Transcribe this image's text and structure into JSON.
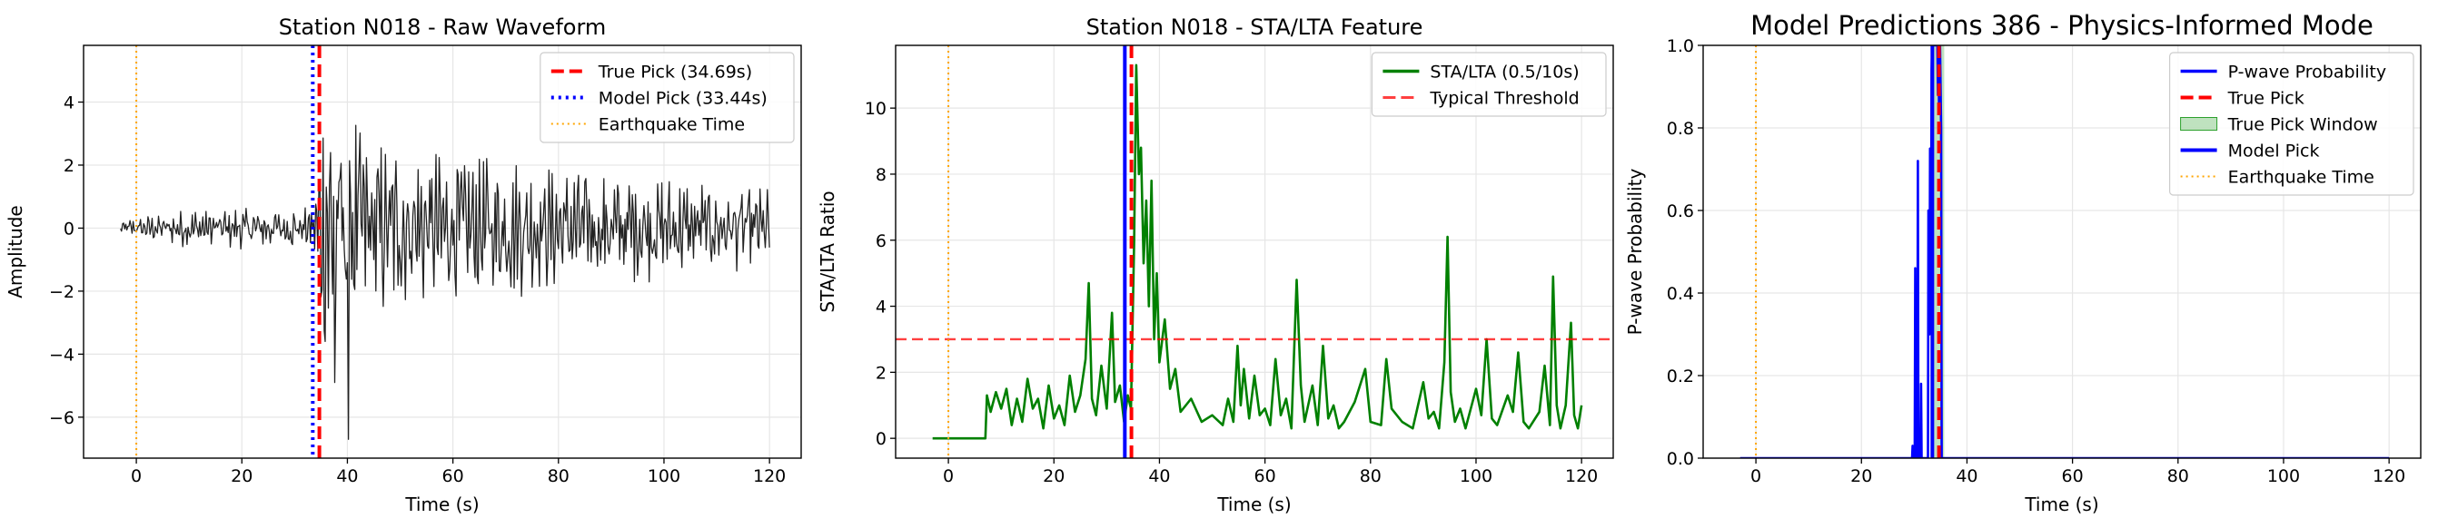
{
  "chart_data": [
    {
      "type": "line",
      "title": "Station N018 - Raw Waveform",
      "xlabel": "Time (s)",
      "ylabel": "Amplitude",
      "xlim": [
        -10,
        126
      ],
      "ylim": [
        -7.3,
        5.8
      ],
      "xticks": [
        0,
        20,
        40,
        60,
        80,
        100,
        120
      ],
      "xtick_labels": [
        "0",
        "20",
        "40",
        "60",
        "80",
        "100",
        "120"
      ],
      "yticks": [
        -6,
        -4,
        -2,
        0,
        2,
        4
      ],
      "ytick_labels": [
        "−6",
        "−4",
        "−2",
        "0",
        "2",
        "4"
      ],
      "grid": true,
      "legend_position": "top-right",
      "series": [
        {
          "name": "waveform",
          "color": "#222222",
          "start": -3,
          "end": 120,
          "envelope": [
            [
              -3,
              0.25
            ],
            [
              8,
              0.6
            ],
            [
              20,
              0.7
            ],
            [
              33,
              0.7
            ],
            [
              34,
              2.0
            ],
            [
              36,
              5.0
            ],
            [
              40,
              4.0
            ],
            [
              48,
              2.8
            ],
            [
              60,
              2.5
            ],
            [
              70,
              2.3
            ],
            [
              80,
              2.0
            ],
            [
              95,
              1.8
            ],
            [
              110,
              1.5
            ],
            [
              120,
              1.3
            ]
          ],
          "spikes": [
            {
              "x": 39.3,
              "y": 5.2
            },
            {
              "x": 40.2,
              "y": -6.7
            },
            {
              "x": 37.6,
              "y": -4.9
            },
            {
              "x": 38.5,
              "y": 3.9
            }
          ]
        }
      ],
      "vlines": [
        {
          "name": "True Pick (34.69s)",
          "x": 34.69,
          "color": "#ff0000",
          "style": "dashed"
        },
        {
          "name": "Model Pick (33.44s)",
          "x": 33.44,
          "color": "#0000ff",
          "style": "dotted"
        },
        {
          "name": "Earthquake Time",
          "x": 0,
          "color": "#ffa500",
          "style": "dotted-thin"
        }
      ],
      "legend": [
        "True Pick (34.69s)",
        "Model Pick (33.44s)",
        "Earthquake Time"
      ]
    },
    {
      "type": "line",
      "title": "Station N018 - STA/LTA Feature",
      "xlabel": "Time (s)",
      "ylabel": "STA/LTA Ratio",
      "xlim": [
        -10,
        126
      ],
      "ylim": [
        -0.6,
        11.9
      ],
      "xticks": [
        0,
        20,
        40,
        60,
        80,
        100,
        120
      ],
      "xtick_labels": [
        "0",
        "20",
        "40",
        "60",
        "80",
        "100",
        "120"
      ],
      "yticks": [
        0,
        2,
        4,
        6,
        8,
        10
      ],
      "ytick_labels": [
        "0",
        "2",
        "4",
        "6",
        "8",
        "10"
      ],
      "grid": true,
      "legend_position": "top-right",
      "series": [
        {
          "name": "STA/LTA (0.5/10s)",
          "color": "#008000",
          "points": [
            [
              -3,
              0
            ],
            [
              7,
              0
            ],
            [
              7.3,
              1.3
            ],
            [
              8,
              0.8
            ],
            [
              9,
              1.4
            ],
            [
              10,
              0.9
            ],
            [
              11,
              1.5
            ],
            [
              12,
              0.4
            ],
            [
              13,
              1.2
            ],
            [
              14,
              0.5
            ],
            [
              15,
              1.8
            ],
            [
              16,
              0.9
            ],
            [
              17,
              1.2
            ],
            [
              18,
              0.3
            ],
            [
              19,
              1.6
            ],
            [
              20,
              0.6
            ],
            [
              21,
              1.0
            ],
            [
              22,
              0.4
            ],
            [
              23,
              1.9
            ],
            [
              24,
              0.8
            ],
            [
              25,
              1.3
            ],
            [
              26,
              2.4
            ],
            [
              26.6,
              4.7
            ],
            [
              27.2,
              1.2
            ],
            [
              28,
              0.7
            ],
            [
              29,
              2.2
            ],
            [
              30,
              0.9
            ],
            [
              31,
              3.8
            ],
            [
              31.6,
              1.1
            ],
            [
              32.5,
              1.6
            ],
            [
              33.3,
              0.5
            ],
            [
              34,
              1.3
            ],
            [
              34.6,
              0.9
            ],
            [
              35.2,
              6.0
            ],
            [
              35.6,
              11.3
            ],
            [
              36.1,
              8.0
            ],
            [
              36.5,
              8.8
            ],
            [
              37,
              5.3
            ],
            [
              37.5,
              7.2
            ],
            [
              38,
              4.0
            ],
            [
              38.5,
              7.8
            ],
            [
              39,
              3.0
            ],
            [
              39.5,
              5.0
            ],
            [
              40,
              2.3
            ],
            [
              41,
              3.6
            ],
            [
              42,
              1.5
            ],
            [
              43,
              2.1
            ],
            [
              44,
              0.8
            ],
            [
              46,
              1.2
            ],
            [
              48,
              0.5
            ],
            [
              50,
              0.7
            ],
            [
              52,
              0.4
            ],
            [
              53,
              1.2
            ],
            [
              54,
              0.5
            ],
            [
              54.8,
              2.8
            ],
            [
              55.4,
              1.0
            ],
            [
              56,
              2.1
            ],
            [
              57,
              0.6
            ],
            [
              58,
              1.9
            ],
            [
              59,
              0.7
            ],
            [
              60,
              0.9
            ],
            [
              61,
              0.4
            ],
            [
              62,
              2.4
            ],
            [
              63,
              0.7
            ],
            [
              64,
              1.2
            ],
            [
              65,
              0.3
            ],
            [
              66,
              4.8
            ],
            [
              66.8,
              1.6
            ],
            [
              67.5,
              0.5
            ],
            [
              69,
              1.6
            ],
            [
              70,
              0.4
            ],
            [
              71,
              2.8
            ],
            [
              72,
              0.6
            ],
            [
              73,
              1.0
            ],
            [
              74,
              0.3
            ],
            [
              75,
              0.5
            ],
            [
              77,
              1.1
            ],
            [
              79,
              2.1
            ],
            [
              80,
              0.5
            ],
            [
              82,
              0.4
            ],
            [
              83,
              2.4
            ],
            [
              84,
              0.9
            ],
            [
              86,
              0.5
            ],
            [
              88,
              0.3
            ],
            [
              90,
              1.7
            ],
            [
              91,
              0.6
            ],
            [
              92,
              0.8
            ],
            [
              93,
              0.3
            ],
            [
              94,
              2.3
            ],
            [
              94.6,
              6.1
            ],
            [
              95.2,
              1.4
            ],
            [
              96,
              0.5
            ],
            [
              97,
              0.9
            ],
            [
              98,
              0.3
            ],
            [
              100,
              1.5
            ],
            [
              101,
              0.7
            ],
            [
              102,
              3.0
            ],
            [
              103,
              0.6
            ],
            [
              104,
              0.4
            ],
            [
              106,
              1.3
            ],
            [
              107,
              0.8
            ],
            [
              108,
              2.6
            ],
            [
              109,
              0.5
            ],
            [
              110,
              0.3
            ],
            [
              112,
              0.8
            ],
            [
              113,
              2.2
            ],
            [
              114,
              0.4
            ],
            [
              114.6,
              4.9
            ],
            [
              115.3,
              1.0
            ],
            [
              116,
              0.3
            ],
            [
              117,
              1.0
            ],
            [
              118,
              3.5
            ],
            [
              118.6,
              0.7
            ],
            [
              119.3,
              0.3
            ],
            [
              120,
              1.0
            ]
          ]
        }
      ],
      "hlines": [
        {
          "name": "Typical Threshold",
          "y": 3.0,
          "color": "#ff0000",
          "style": "dashed"
        }
      ],
      "vlines": [
        {
          "name": "true-pick",
          "x": 34.69,
          "color": "#ff0000",
          "style": "dashed"
        },
        {
          "name": "model-pick",
          "x": 33.44,
          "color": "#0000ff",
          "style": "solid"
        },
        {
          "name": "earthquake-time",
          "x": 0,
          "color": "#ffa500",
          "style": "dotted-thin"
        }
      ],
      "legend": [
        "STA/LTA (0.5/10s)",
        "Typical Threshold"
      ]
    },
    {
      "type": "line",
      "title": "Model Predictions 386 - Physics-Informed Mode",
      "xlabel": "Time (s)",
      "ylabel": "P-wave Probability",
      "xlim": [
        -10,
        126
      ],
      "ylim": [
        0,
        1.0
      ],
      "xticks": [
        0,
        20,
        40,
        60,
        80,
        100,
        120
      ],
      "xtick_labels": [
        "0",
        "20",
        "40",
        "60",
        "80",
        "100",
        "120"
      ],
      "yticks": [
        0,
        0.2,
        0.4,
        0.6,
        0.8,
        1.0
      ],
      "ytick_labels": [
        "0.0",
        "0.2",
        "0.4",
        "0.6",
        "0.8",
        "1.0"
      ],
      "grid": true,
      "legend_position": "top-right",
      "series": [
        {
          "name": "P-wave Probability",
          "color": "#0000ff",
          "points": [
            [
              -3,
              0
            ],
            [
              29.6,
              0
            ],
            [
              29.7,
              0.03
            ],
            [
              29.8,
              0
            ],
            [
              30.1,
              0
            ],
            [
              30.2,
              0.46
            ],
            [
              30.3,
              0
            ],
            [
              30.6,
              0
            ],
            [
              30.7,
              0.72
            ],
            [
              30.8,
              0
            ],
            [
              31.2,
              0
            ],
            [
              31.3,
              0.18
            ],
            [
              31.4,
              0
            ],
            [
              32.6,
              0
            ],
            [
              32.7,
              0.6
            ],
            [
              32.9,
              0.3
            ],
            [
              33.0,
              0.75
            ],
            [
              33.2,
              0.5
            ],
            [
              33.3,
              0.94
            ],
            [
              33.4,
              1.0
            ],
            [
              34.4,
              1.0
            ],
            [
              34.5,
              0.88
            ],
            [
              34.6,
              0.97
            ],
            [
              34.7,
              0.85
            ],
            [
              34.9,
              1.0
            ],
            [
              35.1,
              0.8
            ],
            [
              35.2,
              0
            ],
            [
              120,
              0
            ]
          ]
        }
      ],
      "spans": [
        {
          "name": "True Pick Window",
          "x0": 33.69,
          "x1": 35.69,
          "color": "#2ca02c",
          "alpha": 0.3
        }
      ],
      "vlines": [
        {
          "name": "True Pick",
          "x": 34.69,
          "color": "#ff0000",
          "style": "dashed"
        },
        {
          "name": "Model Pick",
          "x": 33.44,
          "color": "#0000ff",
          "style": "solid"
        },
        {
          "name": "Earthquake Time",
          "x": 0,
          "color": "#ffa500",
          "style": "dotted-thin"
        }
      ],
      "legend": [
        "P-wave Probability",
        "True Pick",
        "True Pick Window",
        "Model Pick",
        "Earthquake Time"
      ]
    }
  ]
}
